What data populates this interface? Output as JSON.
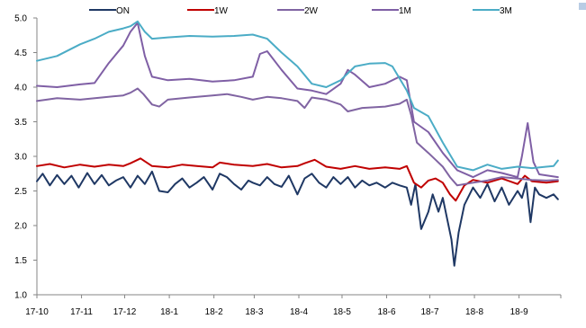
{
  "chart_data": {
    "type": "line",
    "title": "",
    "xlabel": "",
    "ylabel": "",
    "ylim": [
      1.0,
      5.0
    ],
    "yticks": [
      "1.0",
      "1.5",
      "2.0",
      "2.5",
      "3.0",
      "3.5",
      "4.0",
      "4.5",
      "5.0"
    ],
    "xlim": [
      "2017-10",
      "2018-09-30"
    ],
    "xticks": [
      "17-10",
      "17-11",
      "17-12",
      "18-1",
      "18-2",
      "18-3",
      "18-4",
      "18-5",
      "18-6",
      "18-7",
      "18-8",
      "18-9"
    ],
    "legend_position": "top",
    "grid": false,
    "series": [
      {
        "name": "ON",
        "color": "#1f3864",
        "points": [
          [
            "2017-10-01",
            2.64
          ],
          [
            "2017-10-05",
            2.75
          ],
          [
            "2017-10-10",
            2.58
          ],
          [
            "2017-10-15",
            2.73
          ],
          [
            "2017-10-20",
            2.6
          ],
          [
            "2017-10-25",
            2.72
          ],
          [
            "2017-10-30",
            2.55
          ],
          [
            "2017-11-05",
            2.76
          ],
          [
            "2017-11-10",
            2.6
          ],
          [
            "2017-11-15",
            2.73
          ],
          [
            "2017-11-20",
            2.58
          ],
          [
            "2017-11-25",
            2.65
          ],
          [
            "2017-11-30",
            2.7
          ],
          [
            "2017-12-05",
            2.55
          ],
          [
            "2017-12-10",
            2.72
          ],
          [
            "2017-12-15",
            2.6
          ],
          [
            "2017-12-20",
            2.78
          ],
          [
            "2017-12-25",
            2.5
          ],
          [
            "2017-12-31",
            2.48
          ],
          [
            "2018-01-05",
            2.6
          ],
          [
            "2018-01-10",
            2.68
          ],
          [
            "2018-01-15",
            2.55
          ],
          [
            "2018-01-20",
            2.62
          ],
          [
            "2018-01-25",
            2.7
          ],
          [
            "2018-01-31",
            2.52
          ],
          [
            "2018-02-05",
            2.75
          ],
          [
            "2018-02-10",
            2.7
          ],
          [
            "2018-02-15",
            2.6
          ],
          [
            "2018-02-20",
            2.52
          ],
          [
            "2018-02-25",
            2.65
          ],
          [
            "2018-02-28",
            2.62
          ],
          [
            "2018-03-05",
            2.58
          ],
          [
            "2018-03-10",
            2.7
          ],
          [
            "2018-03-15",
            2.6
          ],
          [
            "2018-03-20",
            2.56
          ],
          [
            "2018-03-25",
            2.72
          ],
          [
            "2018-03-31",
            2.45
          ],
          [
            "2018-04-05",
            2.68
          ],
          [
            "2018-04-10",
            2.75
          ],
          [
            "2018-04-15",
            2.62
          ],
          [
            "2018-04-20",
            2.55
          ],
          [
            "2018-04-25",
            2.7
          ],
          [
            "2018-04-30",
            2.6
          ],
          [
            "2018-05-05",
            2.7
          ],
          [
            "2018-05-10",
            2.55
          ],
          [
            "2018-05-15",
            2.65
          ],
          [
            "2018-05-20",
            2.58
          ],
          [
            "2018-05-25",
            2.62
          ],
          [
            "2018-05-31",
            2.55
          ],
          [
            "2018-06-05",
            2.62
          ],
          [
            "2018-06-10",
            2.58
          ],
          [
            "2018-06-15",
            2.55
          ],
          [
            "2018-06-18",
            2.3
          ],
          [
            "2018-06-21",
            2.6
          ],
          [
            "2018-06-25",
            1.95
          ],
          [
            "2018-06-30",
            2.2
          ],
          [
            "2018-07-03",
            2.45
          ],
          [
            "2018-07-07",
            2.2
          ],
          [
            "2018-07-10",
            2.4
          ],
          [
            "2018-07-13",
            2.1
          ],
          [
            "2018-07-16",
            1.8
          ],
          [
            "2018-07-18",
            1.42
          ],
          [
            "2018-07-21",
            1.9
          ],
          [
            "2018-07-25",
            2.3
          ],
          [
            "2018-07-31",
            2.55
          ],
          [
            "2018-08-05",
            2.4
          ],
          [
            "2018-08-10",
            2.6
          ],
          [
            "2018-08-15",
            2.35
          ],
          [
            "2018-08-20",
            2.55
          ],
          [
            "2018-08-25",
            2.3
          ],
          [
            "2018-08-31",
            2.5
          ],
          [
            "2018-09-03",
            2.4
          ],
          [
            "2018-09-06",
            2.62
          ],
          [
            "2018-09-09",
            2.05
          ],
          [
            "2018-09-12",
            2.55
          ],
          [
            "2018-09-15",
            2.45
          ],
          [
            "2018-09-20",
            2.4
          ],
          [
            "2018-09-25",
            2.45
          ],
          [
            "2018-09-28",
            2.38
          ]
        ]
      },
      {
        "name": "1W",
        "color": "#c00000",
        "points": [
          [
            "2017-10-01",
            2.86
          ],
          [
            "2017-10-10",
            2.89
          ],
          [
            "2017-10-20",
            2.84
          ],
          [
            "2017-10-31",
            2.88
          ],
          [
            "2017-11-10",
            2.85
          ],
          [
            "2017-11-20",
            2.88
          ],
          [
            "2017-11-30",
            2.86
          ],
          [
            "2017-12-05",
            2.9
          ],
          [
            "2017-12-12",
            2.97
          ],
          [
            "2017-12-20",
            2.86
          ],
          [
            "2017-12-31",
            2.84
          ],
          [
            "2018-01-10",
            2.88
          ],
          [
            "2018-01-20",
            2.86
          ],
          [
            "2018-01-31",
            2.84
          ],
          [
            "2018-02-05",
            2.91
          ],
          [
            "2018-02-15",
            2.88
          ],
          [
            "2018-02-28",
            2.86
          ],
          [
            "2018-03-10",
            2.89
          ],
          [
            "2018-03-20",
            2.84
          ],
          [
            "2018-03-31",
            2.86
          ],
          [
            "2018-04-05",
            2.9
          ],
          [
            "2018-04-12",
            2.95
          ],
          [
            "2018-04-20",
            2.85
          ],
          [
            "2018-04-30",
            2.82
          ],
          [
            "2018-05-10",
            2.86
          ],
          [
            "2018-05-20",
            2.82
          ],
          [
            "2018-05-31",
            2.84
          ],
          [
            "2018-06-10",
            2.82
          ],
          [
            "2018-06-15",
            2.86
          ],
          [
            "2018-06-20",
            2.62
          ],
          [
            "2018-06-25",
            2.55
          ],
          [
            "2018-06-30",
            2.65
          ],
          [
            "2018-07-05",
            2.68
          ],
          [
            "2018-07-10",
            2.62
          ],
          [
            "2018-07-15",
            2.45
          ],
          [
            "2018-07-19",
            2.36
          ],
          [
            "2018-07-25",
            2.58
          ],
          [
            "2018-07-31",
            2.66
          ],
          [
            "2018-08-10",
            2.62
          ],
          [
            "2018-08-20",
            2.68
          ],
          [
            "2018-08-31",
            2.6
          ],
          [
            "2018-09-05",
            2.72
          ],
          [
            "2018-09-10",
            2.64
          ],
          [
            "2018-09-20",
            2.62
          ],
          [
            "2018-09-28",
            2.64
          ]
        ]
      },
      {
        "name": "2W",
        "color": "#8064a2",
        "points": [
          [
            "2017-10-01",
            3.8
          ],
          [
            "2017-10-15",
            3.84
          ],
          [
            "2017-10-31",
            3.82
          ],
          [
            "2017-11-15",
            3.85
          ],
          [
            "2017-11-30",
            3.88
          ],
          [
            "2017-12-05",
            3.92
          ],
          [
            "2017-12-10",
            3.98
          ],
          [
            "2017-12-14",
            3.9
          ],
          [
            "2017-12-20",
            3.75
          ],
          [
            "2017-12-25",
            3.72
          ],
          [
            "2017-12-31",
            3.82
          ],
          [
            "2018-01-15",
            3.85
          ],
          [
            "2018-01-31",
            3.88
          ],
          [
            "2018-02-10",
            3.9
          ],
          [
            "2018-02-20",
            3.86
          ],
          [
            "2018-02-28",
            3.82
          ],
          [
            "2018-03-10",
            3.86
          ],
          [
            "2018-03-20",
            3.84
          ],
          [
            "2018-03-31",
            3.8
          ],
          [
            "2018-04-05",
            3.7
          ],
          [
            "2018-04-10",
            3.85
          ],
          [
            "2018-04-20",
            3.82
          ],
          [
            "2018-04-30",
            3.75
          ],
          [
            "2018-05-05",
            3.65
          ],
          [
            "2018-05-15",
            3.7
          ],
          [
            "2018-05-31",
            3.72
          ],
          [
            "2018-06-10",
            3.76
          ],
          [
            "2018-06-15",
            3.82
          ],
          [
            "2018-06-18",
            3.6
          ],
          [
            "2018-06-22",
            3.2
          ],
          [
            "2018-06-30",
            3.05
          ],
          [
            "2018-07-05",
            2.95
          ],
          [
            "2018-07-10",
            2.85
          ],
          [
            "2018-07-15",
            2.7
          ],
          [
            "2018-07-20",
            2.58
          ],
          [
            "2018-07-31",
            2.62
          ],
          [
            "2018-08-10",
            2.65
          ],
          [
            "2018-08-20",
            2.7
          ],
          [
            "2018-08-31",
            2.68
          ],
          [
            "2018-09-10",
            2.66
          ],
          [
            "2018-09-20",
            2.65
          ],
          [
            "2018-09-28",
            2.66
          ]
        ]
      },
      {
        "name": "1M",
        "color": "#7f5fa5",
        "points": [
          [
            "2017-10-01",
            4.02
          ],
          [
            "2017-10-15",
            4.0
          ],
          [
            "2017-10-31",
            4.04
          ],
          [
            "2017-11-10",
            4.06
          ],
          [
            "2017-11-20",
            4.35
          ],
          [
            "2017-11-30",
            4.6
          ],
          [
            "2017-12-05",
            4.8
          ],
          [
            "2017-12-10",
            4.93
          ],
          [
            "2017-12-15",
            4.45
          ],
          [
            "2017-12-20",
            4.15
          ],
          [
            "2017-12-31",
            4.1
          ],
          [
            "2018-01-15",
            4.12
          ],
          [
            "2018-01-31",
            4.08
          ],
          [
            "2018-02-15",
            4.1
          ],
          [
            "2018-02-28",
            4.15
          ],
          [
            "2018-03-05",
            4.48
          ],
          [
            "2018-03-10",
            4.52
          ],
          [
            "2018-03-20",
            4.25
          ],
          [
            "2018-03-31",
            3.98
          ],
          [
            "2018-04-10",
            3.95
          ],
          [
            "2018-04-20",
            3.9
          ],
          [
            "2018-04-30",
            4.05
          ],
          [
            "2018-05-05",
            4.25
          ],
          [
            "2018-05-10",
            4.18
          ],
          [
            "2018-05-20",
            4.0
          ],
          [
            "2018-05-31",
            4.05
          ],
          [
            "2018-06-10",
            4.15
          ],
          [
            "2018-06-15",
            4.1
          ],
          [
            "2018-06-20",
            3.5
          ],
          [
            "2018-06-30",
            3.35
          ],
          [
            "2018-07-10",
            3.05
          ],
          [
            "2018-07-20",
            2.8
          ],
          [
            "2018-07-31",
            2.7
          ],
          [
            "2018-08-10",
            2.8
          ],
          [
            "2018-08-20",
            2.76
          ],
          [
            "2018-08-31",
            2.7
          ],
          [
            "2018-09-03",
            3.0
          ],
          [
            "2018-09-07",
            3.48
          ],
          [
            "2018-09-11",
            2.92
          ],
          [
            "2018-09-15",
            2.74
          ],
          [
            "2018-09-28",
            2.7
          ]
        ]
      },
      {
        "name": "3M",
        "color": "#4bacc6",
        "points": [
          [
            "2017-10-01",
            4.38
          ],
          [
            "2017-10-15",
            4.45
          ],
          [
            "2017-10-31",
            4.62
          ],
          [
            "2017-11-10",
            4.7
          ],
          [
            "2017-11-20",
            4.8
          ],
          [
            "2017-11-30",
            4.85
          ],
          [
            "2017-12-05",
            4.88
          ],
          [
            "2017-12-10",
            4.95
          ],
          [
            "2017-12-15",
            4.8
          ],
          [
            "2017-12-20",
            4.7
          ],
          [
            "2017-12-31",
            4.72
          ],
          [
            "2018-01-15",
            4.74
          ],
          [
            "2018-01-31",
            4.73
          ],
          [
            "2018-02-15",
            4.74
          ],
          [
            "2018-02-28",
            4.76
          ],
          [
            "2018-03-10",
            4.7
          ],
          [
            "2018-03-20",
            4.5
          ],
          [
            "2018-03-31",
            4.3
          ],
          [
            "2018-04-10",
            4.05
          ],
          [
            "2018-04-20",
            4.0
          ],
          [
            "2018-04-30",
            4.1
          ],
          [
            "2018-05-10",
            4.3
          ],
          [
            "2018-05-20",
            4.34
          ],
          [
            "2018-05-31",
            4.35
          ],
          [
            "2018-06-05",
            4.3
          ],
          [
            "2018-06-15",
            3.95
          ],
          [
            "2018-06-20",
            3.7
          ],
          [
            "2018-06-30",
            3.58
          ],
          [
            "2018-07-10",
            3.2
          ],
          [
            "2018-07-20",
            2.85
          ],
          [
            "2018-07-31",
            2.8
          ],
          [
            "2018-08-10",
            2.88
          ],
          [
            "2018-08-20",
            2.82
          ],
          [
            "2018-08-31",
            2.85
          ],
          [
            "2018-09-10",
            2.83
          ],
          [
            "2018-09-20",
            2.85
          ],
          [
            "2018-09-25",
            2.86
          ],
          [
            "2018-09-28",
            2.94
          ]
        ]
      }
    ]
  }
}
